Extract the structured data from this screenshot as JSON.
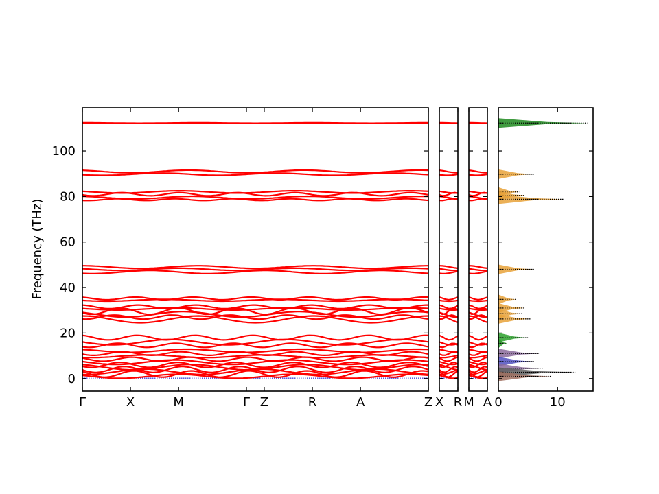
{
  "chart_data": {
    "type": "line",
    "ylabel": "Frequency (THz)",
    "ylim": [
      -5.5,
      119
    ],
    "yticks": [
      0,
      20,
      40,
      60,
      80,
      100
    ],
    "panels": [
      {
        "id": "path-main",
        "kpoints": [
          {
            "label": "Γ",
            "pos": 0.0
          },
          {
            "label": "X",
            "pos": 1.0
          },
          {
            "label": "M",
            "pos": 2.0
          },
          {
            "label": "Γ",
            "pos": 3.41
          },
          {
            "label": "Z",
            "pos": 3.78
          },
          {
            "label": "R",
            "pos": 4.78
          },
          {
            "label": "A",
            "pos": 5.78
          },
          {
            "label": "Z",
            "pos": 7.19
          }
        ]
      },
      {
        "id": "path-xr",
        "kpoints": [
          {
            "label": "X",
            "pos": 0
          },
          {
            "label": "R",
            "pos": 1
          }
        ]
      },
      {
        "id": "path-ma",
        "kpoints": [
          {
            "label": "M",
            "pos": 0
          },
          {
            "label": "A",
            "pos": 1
          }
        ]
      }
    ],
    "bands": [
      {
        "y": 112.3,
        "amp": 0.1,
        "k": 1,
        "phase": 0.0
      },
      {
        "y": 91.0,
        "amp": 0.6,
        "k": 1,
        "phase": 0.5
      },
      {
        "y": 89.8,
        "amp": 0.5,
        "k": 1,
        "phase": 2.0
      },
      {
        "y": 82.0,
        "amp": 0.5,
        "k": 1,
        "phase": 1.0
      },
      {
        "y": 81.0,
        "amp": 0.7,
        "k": 2,
        "phase": 2.0
      },
      {
        "y": 79.5,
        "amp": 0.6,
        "k": 1,
        "phase": 0.3
      },
      {
        "y": 78.6,
        "amp": 0.4,
        "k": 2,
        "phase": 2.5
      },
      {
        "y": 49.0,
        "amp": 0.6,
        "k": 1,
        "phase": 0.0
      },
      {
        "y": 48.0,
        "amp": 0.5,
        "k": 1,
        "phase": 1.0
      },
      {
        "y": 46.8,
        "amp": 0.7,
        "k": 1,
        "phase": 2.6
      },
      {
        "y": 35.2,
        "amp": 0.6,
        "k": 2,
        "phase": 0.5
      },
      {
        "y": 34.4,
        "amp": 0.4,
        "k": 1,
        "phase": 1.8
      },
      {
        "y": 31.5,
        "amp": 0.8,
        "k": 2,
        "phase": 0.2
      },
      {
        "y": 30.6,
        "amp": 0.5,
        "k": 1,
        "phase": 1.2
      },
      {
        "y": 29.6,
        "amp": 1.4,
        "k": 2,
        "phase": 2.1
      },
      {
        "y": 28.2,
        "amp": 1.2,
        "k": 1,
        "phase": 0.8
      },
      {
        "y": 27.0,
        "amp": 0.9,
        "k": 2,
        "phase": 2.8
      },
      {
        "y": 26.0,
        "amp": 1.5,
        "k": 1,
        "phase": 0.0
      },
      {
        "y": 18.0,
        "amp": 1.0,
        "k": 2,
        "phase": 0.3
      },
      {
        "y": 16.0,
        "amp": 1.2,
        "k": 1,
        "phase": 1.5
      },
      {
        "y": 14.6,
        "amp": 0.9,
        "k": 2,
        "phase": 2.4
      },
      {
        "y": 12.2,
        "amp": 0.7,
        "k": 1,
        "phase": 0.6
      },
      {
        "y": 11.0,
        "amp": 0.8,
        "k": 2,
        "phase": 1.9
      },
      {
        "y": 9.8,
        "amp": 0.6,
        "k": 1,
        "phase": 2.7
      },
      {
        "y": 8.5,
        "amp": 0.9,
        "k": 2,
        "phase": 0.9
      },
      {
        "y": 7.2,
        "amp": 1.0,
        "k": 1,
        "phase": 1.3
      },
      {
        "y": 6.0,
        "amp": 1.1,
        "k": 2,
        "phase": 2.2
      },
      {
        "y": 5.0,
        "amp": 1.2,
        "k": 1,
        "phase": 0.4
      },
      {
        "y": 4.0,
        "amp": 1.3,
        "k": 2,
        "phase": 1.7
      },
      {
        "y": 3.0,
        "amp": 1.2,
        "k": 1,
        "phase": 2.9
      },
      {
        "y": 2.0,
        "amp": 1.4,
        "k": 2,
        "phase": 0.7
      },
      {
        "y": 1.0,
        "amp": 0.9,
        "k": 1,
        "phase": 1.1
      }
    ],
    "dos": {
      "xticks": [
        0,
        10
      ],
      "xlim": [
        0,
        16
      ],
      "peaks": [
        {
          "y": 112.3,
          "h": 15.0,
          "color": "#1f8a1f"
        },
        {
          "y": 89.8,
          "h": 6.0,
          "color": "#e8a23a"
        },
        {
          "y": 82.0,
          "h": 3.5,
          "color": "#e8a23a"
        },
        {
          "y": 80.5,
          "h": 4.5,
          "color": "#e8a23a"
        },
        {
          "y": 78.8,
          "h": 11.0,
          "color": "#e8a23a"
        },
        {
          "y": 48.0,
          "h": 6.0,
          "color": "#e8a23a"
        },
        {
          "y": 34.8,
          "h": 3.0,
          "color": "#e8a23a"
        },
        {
          "y": 31.0,
          "h": 4.5,
          "color": "#e8a23a"
        },
        {
          "y": 28.5,
          "h": 4.0,
          "color": "#e8a23a"
        },
        {
          "y": 26.2,
          "h": 5.5,
          "color": "#e8a23a"
        },
        {
          "y": 18.0,
          "h": 5.0,
          "color": "#2ca02c"
        },
        {
          "y": 15.5,
          "h": 1.5,
          "color": "#2ca02c"
        },
        {
          "y": 11.0,
          "h": 7.0,
          "color": "#8a6a9a"
        },
        {
          "y": 7.5,
          "h": 6.0,
          "color": "#5050c0"
        },
        {
          "y": 4.5,
          "h": 7.5,
          "color": "#8a6a9a"
        },
        {
          "y": 2.8,
          "h": 13.0,
          "color": "#606060"
        },
        {
          "y": 1.0,
          "h": 9.0,
          "color": "#a07060"
        }
      ]
    }
  }
}
